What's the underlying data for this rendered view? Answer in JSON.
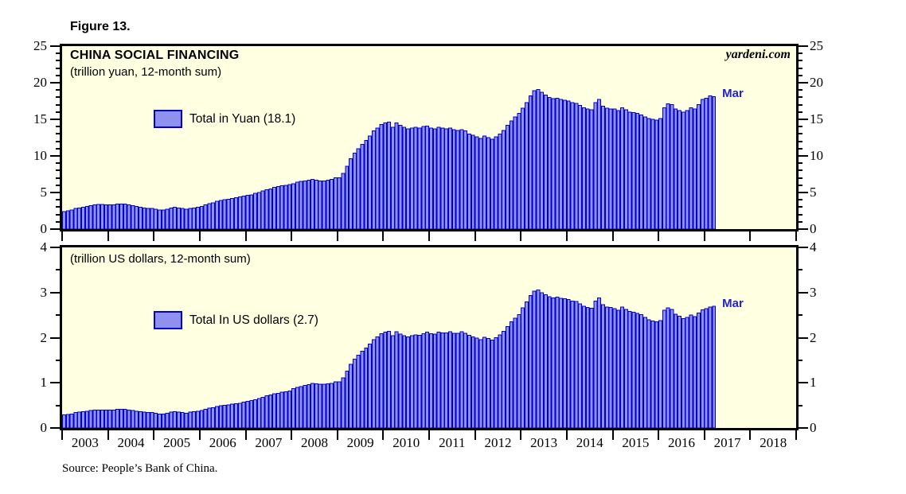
{
  "figure_label": "Figure 13.",
  "watermark": "yardeni.com",
  "source_note": "Source: People’s Bank of China.",
  "colors": {
    "plot_bg": "#FFFFE1",
    "bar_fill": "#9090EE",
    "bar_border": "#0000CC",
    "annotation_blue": "#2222CC",
    "axis": "#000000"
  },
  "x_axis": {
    "years": [
      "2003",
      "2004",
      "2005",
      "2006",
      "2007",
      "2008",
      "2009",
      "2010",
      "2011",
      "2012",
      "2013",
      "2014",
      "2015",
      "2016",
      "2017",
      "2018"
    ]
  },
  "chart_data": [
    {
      "type": "bar",
      "panel": "top",
      "title": "CHINA SOCIAL FINANCING",
      "subtitle": "(trillion yuan, 12-month sum)",
      "legend": "Total in Yuan (18.1)",
      "last_point_label": "Mar",
      "last_value": 18.1,
      "x_start": "2003-01",
      "x_end": "2017-03",
      "ylim": [
        0,
        25
      ],
      "y_major_ticks": [
        0,
        5,
        10,
        15,
        20,
        25
      ],
      "y_minor_step": 1,
      "grid": false,
      "values": [
        2.4,
        2.5,
        2.6,
        2.8,
        2.9,
        3.0,
        3.1,
        3.2,
        3.3,
        3.35,
        3.35,
        3.3,
        3.3,
        3.3,
        3.4,
        3.4,
        3.4,
        3.3,
        3.2,
        3.1,
        3.0,
        2.9,
        2.8,
        2.8,
        2.7,
        2.6,
        2.6,
        2.7,
        2.9,
        3.0,
        2.9,
        2.8,
        2.7,
        2.8,
        2.9,
        3.0,
        3.1,
        3.3,
        3.5,
        3.6,
        3.8,
        3.9,
        4.0,
        4.1,
        4.2,
        4.3,
        4.4,
        4.5,
        4.6,
        4.7,
        4.9,
        5.0,
        5.2,
        5.4,
        5.5,
        5.7,
        5.8,
        5.9,
        6.0,
        6.1,
        6.2,
        6.4,
        6.5,
        6.6,
        6.7,
        6.8,
        6.7,
        6.6,
        6.6,
        6.7,
        6.8,
        7.0,
        7.0,
        7.6,
        8.6,
        9.6,
        10.4,
        11.0,
        11.6,
        12.1,
        12.7,
        13.4,
        13.8,
        14.3,
        14.5,
        14.6,
        13.9,
        14.5,
        14.2,
        13.9,
        13.7,
        13.8,
        13.9,
        13.8,
        14.0,
        14.1,
        13.8,
        13.7,
        13.9,
        13.8,
        13.7,
        13.8,
        13.6,
        13.5,
        13.6,
        13.4,
        13.0,
        12.8,
        12.6,
        12.4,
        12.7,
        12.5,
        12.3,
        12.6,
        13.0,
        13.5,
        14.2,
        14.8,
        15.3,
        15.8,
        16.5,
        17.3,
        18.2,
        18.9,
        19.1,
        18.7,
        18.3,
        18.0,
        17.8,
        17.9,
        17.7,
        17.6,
        17.5,
        17.3,
        17.2,
        16.9,
        16.6,
        16.4,
        16.3,
        17.3,
        17.7,
        16.8,
        16.5,
        16.4,
        16.4,
        16.2,
        16.6,
        16.3,
        16.0,
        15.9,
        15.8,
        15.6,
        15.3,
        15.1,
        15.0,
        14.9,
        15.1,
        16.6,
        17.1,
        17.0,
        16.4,
        16.2,
        16.0,
        16.2,
        16.6,
        16.4,
        17.0,
        17.7,
        17.9,
        18.2,
        18.1
      ]
    },
    {
      "type": "bar",
      "panel": "bottom",
      "title": "",
      "subtitle": "(trillion US dollars, 12-month sum)",
      "legend": "Total In US dollars (2.7)",
      "last_point_label": "Mar",
      "last_value": 2.7,
      "x_start": "2003-01",
      "x_end": "2017-03",
      "ylim": [
        0,
        4
      ],
      "y_major_ticks": [
        0,
        1,
        2,
        3,
        4
      ],
      "y_minor_step": 0.5,
      "grid": false,
      "values": [
        0.29,
        0.3,
        0.31,
        0.34,
        0.35,
        0.36,
        0.37,
        0.39,
        0.4,
        0.4,
        0.4,
        0.4,
        0.4,
        0.4,
        0.41,
        0.41,
        0.41,
        0.4,
        0.39,
        0.37,
        0.36,
        0.35,
        0.34,
        0.34,
        0.33,
        0.31,
        0.31,
        0.33,
        0.35,
        0.36,
        0.35,
        0.34,
        0.33,
        0.35,
        0.36,
        0.37,
        0.39,
        0.41,
        0.44,
        0.45,
        0.48,
        0.49,
        0.5,
        0.51,
        0.53,
        0.54,
        0.55,
        0.57,
        0.59,
        0.61,
        0.63,
        0.65,
        0.68,
        0.71,
        0.73,
        0.76,
        0.77,
        0.79,
        0.8,
        0.82,
        0.87,
        0.9,
        0.92,
        0.94,
        0.96,
        0.99,
        0.98,
        0.97,
        0.97,
        0.98,
        0.99,
        1.02,
        1.02,
        1.11,
        1.26,
        1.41,
        1.52,
        1.61,
        1.7,
        1.77,
        1.86,
        1.96,
        2.02,
        2.09,
        2.12,
        2.14,
        2.04,
        2.13,
        2.08,
        2.04,
        2.02,
        2.04,
        2.06,
        2.05,
        2.09,
        2.12,
        2.09,
        2.08,
        2.12,
        2.11,
        2.11,
        2.13,
        2.1,
        2.1,
        2.13,
        2.1,
        2.05,
        2.02,
        1.99,
        1.96,
        2.01,
        1.98,
        1.95,
        2.0,
        2.06,
        2.14,
        2.25,
        2.35,
        2.43,
        2.51,
        2.66,
        2.79,
        2.93,
        3.03,
        3.06,
        3.0,
        2.95,
        2.91,
        2.88,
        2.9,
        2.87,
        2.86,
        2.85,
        2.81,
        2.8,
        2.75,
        2.7,
        2.67,
        2.65,
        2.81,
        2.88,
        2.73,
        2.68,
        2.67,
        2.64,
        2.61,
        2.68,
        2.63,
        2.58,
        2.56,
        2.54,
        2.51,
        2.45,
        2.4,
        2.37,
        2.35,
        2.38,
        2.61,
        2.66,
        2.63,
        2.52,
        2.48,
        2.42,
        2.45,
        2.5,
        2.47,
        2.55,
        2.62,
        2.64,
        2.68,
        2.7
      ]
    }
  ]
}
